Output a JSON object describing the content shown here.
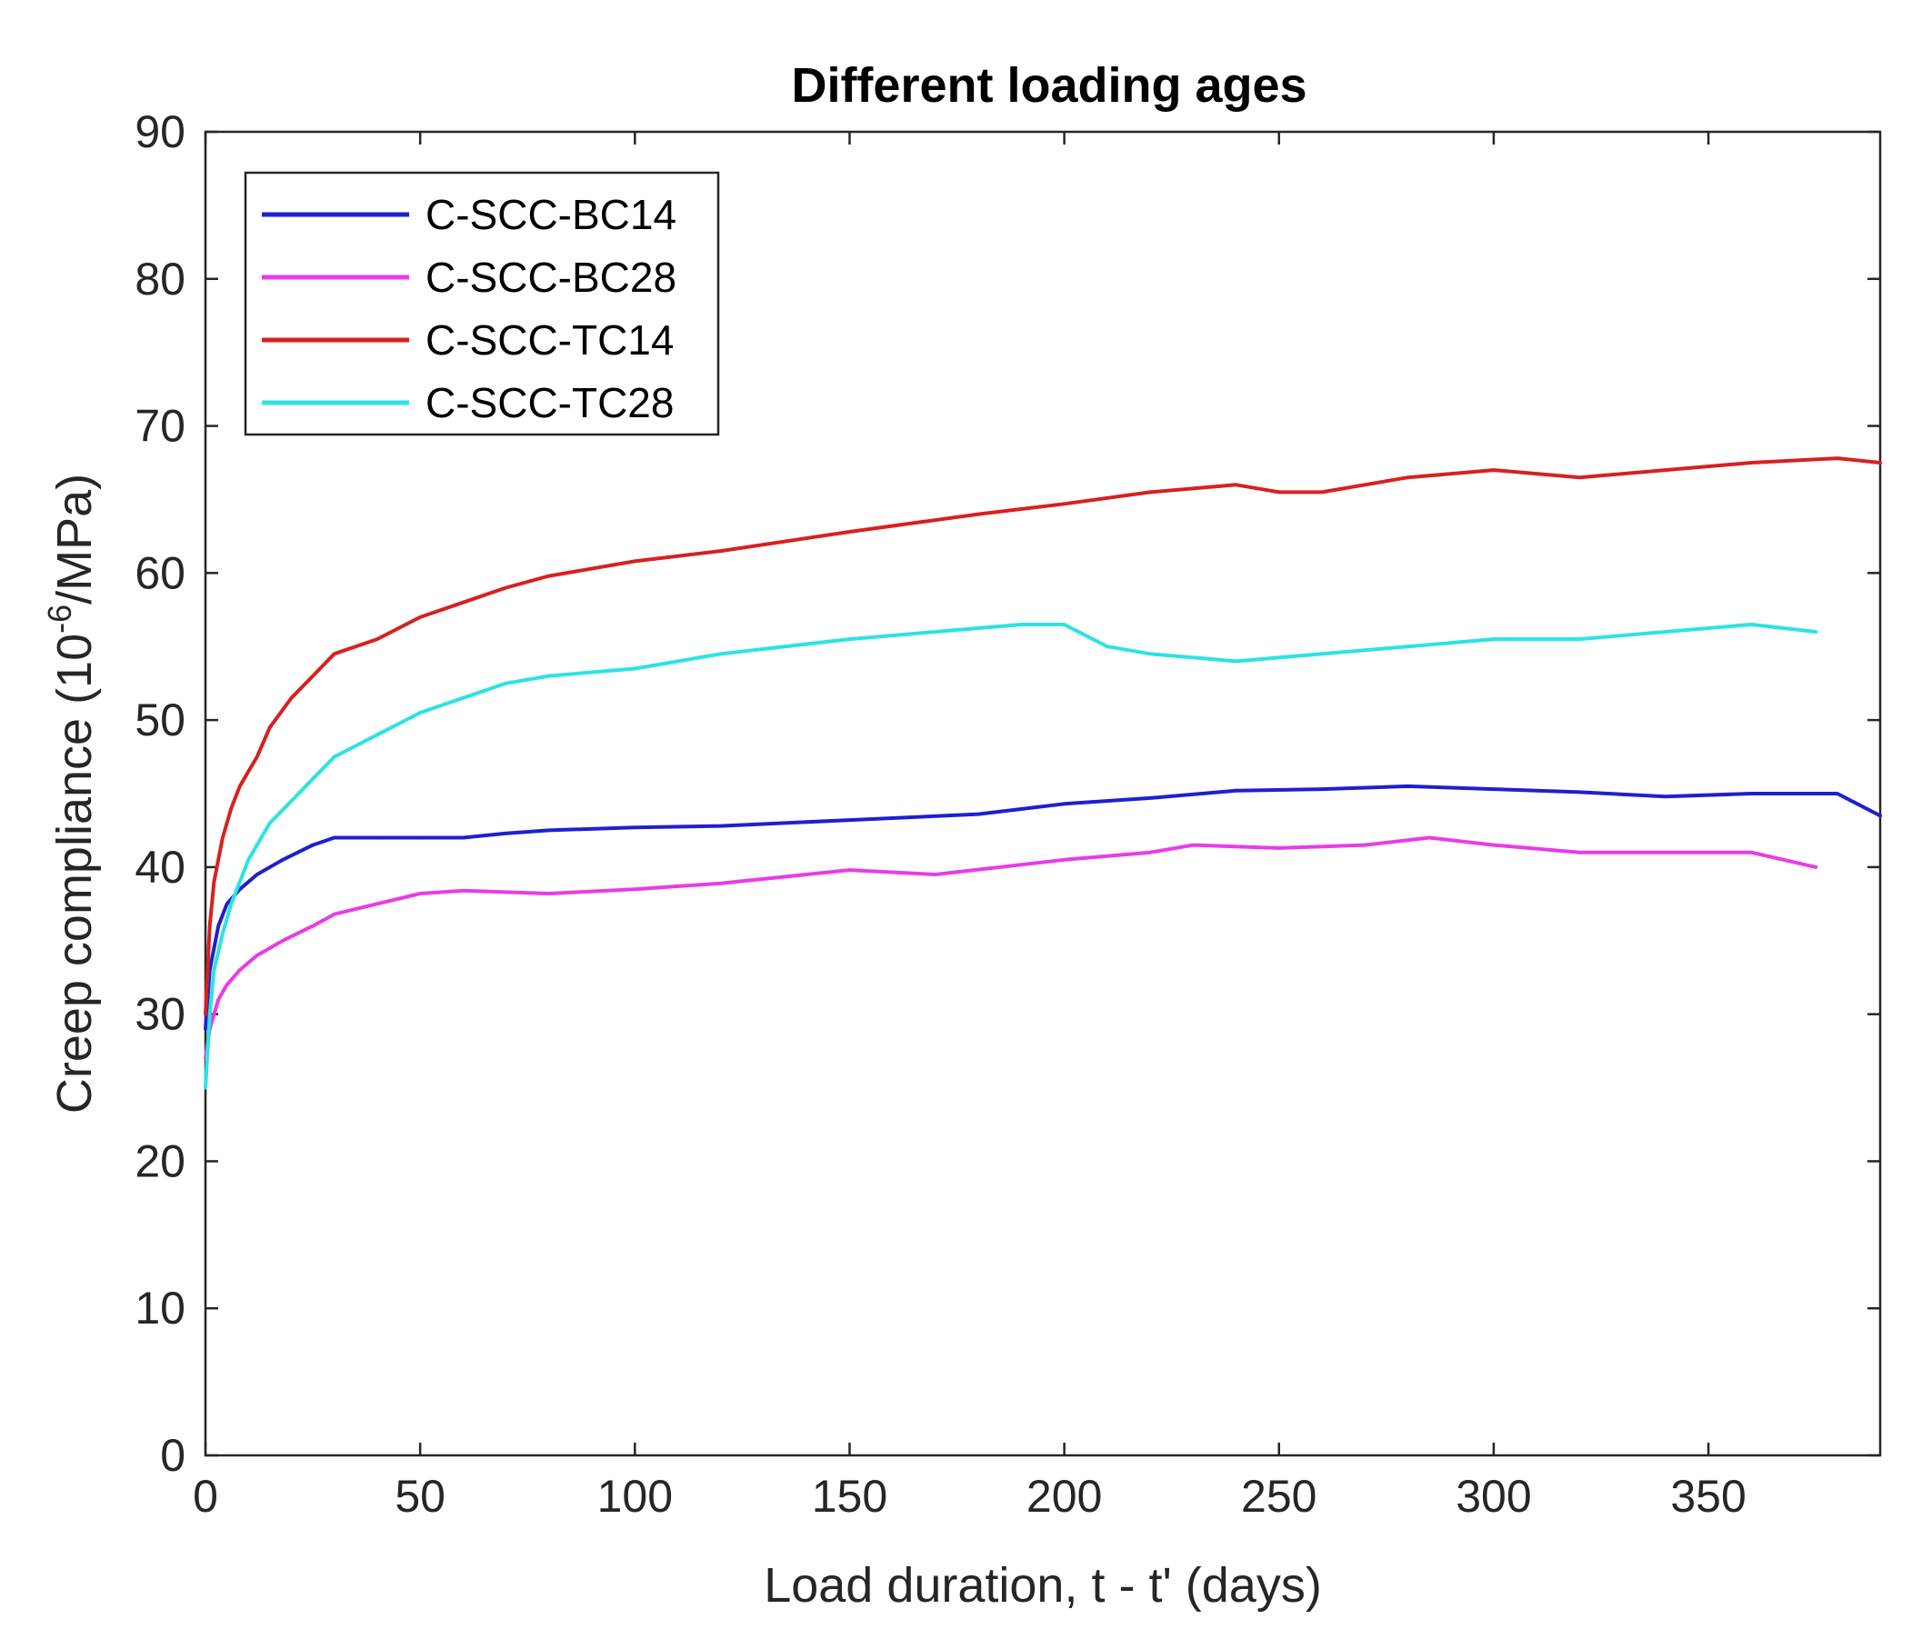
{
  "chart_data": {
    "type": "line",
    "title": "Different loading ages",
    "xlabel": "Load duration, t - t' (days)",
    "ylabel_prefix": "Creep compliance (10",
    "ylabel_superscript": "-6",
    "ylabel_suffix": "/MPa)",
    "xlim": [
      0,
      390
    ],
    "ylim": [
      0,
      90
    ],
    "x_ticks": [
      0,
      50,
      100,
      150,
      200,
      250,
      300,
      350
    ],
    "y_ticks": [
      0,
      10,
      20,
      30,
      40,
      50,
      60,
      70,
      80,
      90
    ],
    "grid": false,
    "legend_position": "top-left",
    "series": [
      {
        "name": "C-SCC-BC14",
        "color": "#1f1fd0",
        "x": [
          0,
          1,
          3,
          5,
          8,
          12,
          18,
          25,
          30,
          40,
          50,
          60,
          70,
          80,
          100,
          120,
          150,
          180,
          200,
          220,
          240,
          260,
          280,
          300,
          320,
          340,
          360,
          380,
          390
        ],
        "y": [
          29,
          33,
          36,
          37.5,
          38.5,
          39.5,
          40.5,
          41.5,
          42,
          42,
          42,
          42,
          42.3,
          42.5,
          42.7,
          42.8,
          43.2,
          43.6,
          44.3,
          44.7,
          45.2,
          45.3,
          45.5,
          45.3,
          45.1,
          44.8,
          45,
          45,
          43.5
        ]
      },
      {
        "name": "C-SCC-BC28",
        "color": "#e83ce8",
        "x": [
          0,
          1,
          3,
          5,
          8,
          12,
          18,
          25,
          30,
          40,
          50,
          60,
          70,
          80,
          100,
          120,
          150,
          170,
          200,
          220,
          230,
          250,
          270,
          285,
          300,
          320,
          340,
          360,
          375
        ],
        "y": [
          27,
          29,
          31,
          32,
          33,
          34,
          35,
          36,
          36.8,
          37.5,
          38.2,
          38.4,
          38.3,
          38.2,
          38.5,
          38.9,
          39.8,
          39.5,
          40.5,
          41,
          41.5,
          41.3,
          41.5,
          42,
          41.5,
          41,
          41,
          41,
          40
        ]
      },
      {
        "name": "C-SCC-TC14",
        "color": "#d82020",
        "x": [
          0,
          1,
          2,
          4,
          6,
          8,
          10,
          12,
          15,
          20,
          25,
          30,
          40,
          50,
          60,
          70,
          80,
          100,
          120,
          150,
          180,
          200,
          220,
          240,
          250,
          260,
          280,
          300,
          320,
          340,
          360,
          380,
          390
        ],
        "y": [
          30,
          36,
          39,
          42,
          44,
          45.5,
          46.5,
          47.5,
          49.5,
          51.5,
          53,
          54.5,
          55.5,
          57,
          58,
          59,
          59.8,
          60.8,
          61.5,
          62.8,
          64,
          64.7,
          65.5,
          66,
          65.5,
          65.5,
          66.5,
          67,
          66.5,
          67,
          67.5,
          67.8,
          67.5
        ]
      },
      {
        "name": "C-SCC-TC28",
        "color": "#2ce3e3",
        "x": [
          0,
          1,
          2,
          4,
          6,
          8,
          10,
          12,
          15,
          20,
          25,
          30,
          40,
          50,
          60,
          70,
          80,
          100,
          120,
          150,
          170,
          190,
          200,
          210,
          220,
          240,
          260,
          280,
          300,
          320,
          340,
          360,
          375
        ],
        "y": [
          25,
          30,
          33,
          35.5,
          37.5,
          39,
          40.5,
          41.5,
          43,
          44.5,
          46,
          47.5,
          49,
          50.5,
          51.5,
          52.5,
          53,
          53.5,
          54.5,
          55.5,
          56,
          56.5,
          56.5,
          55,
          54.5,
          54,
          54.5,
          55,
          55.5,
          55.5,
          56,
          56.5,
          56
        ]
      }
    ]
  }
}
